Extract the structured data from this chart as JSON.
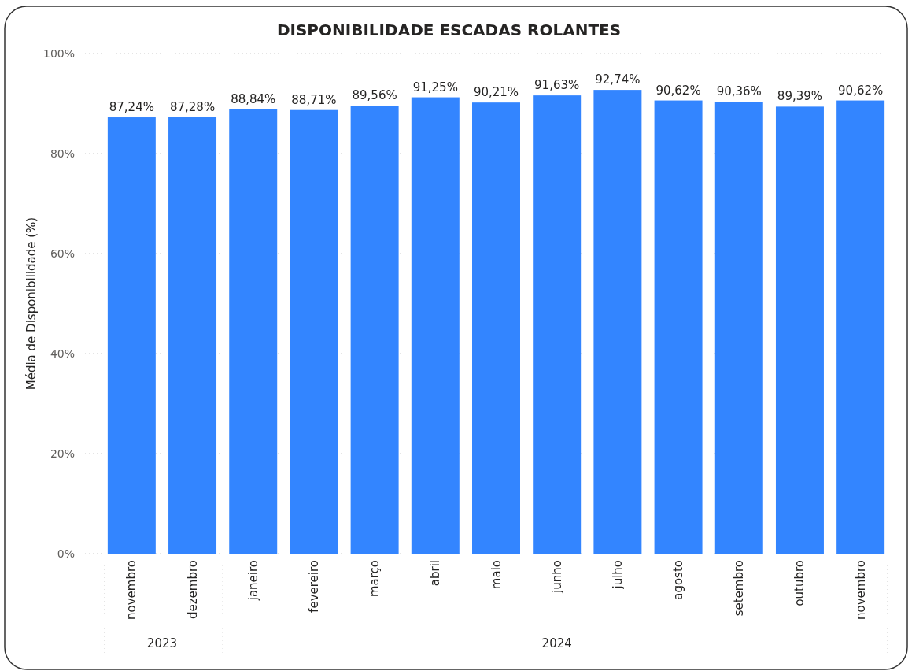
{
  "chart_data": {
    "type": "bar",
    "title": "DISPONIBILIDADE ESCADAS ROLANTES",
    "ylabel": "Média de Disponibilidade (%)",
    "categories": [
      "novembro",
      "dezembro",
      "janeiro",
      "fevereiro",
      "março",
      "abril",
      "maio",
      "junho",
      "julho",
      "agosto",
      "setembro",
      "outubro",
      "novembro"
    ],
    "values": [
      87.24,
      87.28,
      88.84,
      88.71,
      89.56,
      91.25,
      90.21,
      91.63,
      92.74,
      90.62,
      90.36,
      89.39,
      90.62
    ],
    "value_labels": [
      "87,24%",
      "87,28%",
      "88,84%",
      "88,71%",
      "89,56%",
      "91,25%",
      "90,21%",
      "91,63%",
      "92,74%",
      "90,62%",
      "90,36%",
      "89,39%",
      "90,62%"
    ],
    "color": "#3385ff",
    "ylim": [
      0,
      100
    ],
    "yticks": [
      {
        "value": 0,
        "label": "0%"
      },
      {
        "value": 20,
        "label": "20%"
      },
      {
        "value": 40,
        "label": "40%"
      },
      {
        "value": 60,
        "label": "60%"
      },
      {
        "value": 80,
        "label": "80%"
      },
      {
        "value": 100,
        "label": "100%"
      }
    ],
    "grid": "y",
    "annotations": [
      "2023",
      "2024"
    ]
  }
}
